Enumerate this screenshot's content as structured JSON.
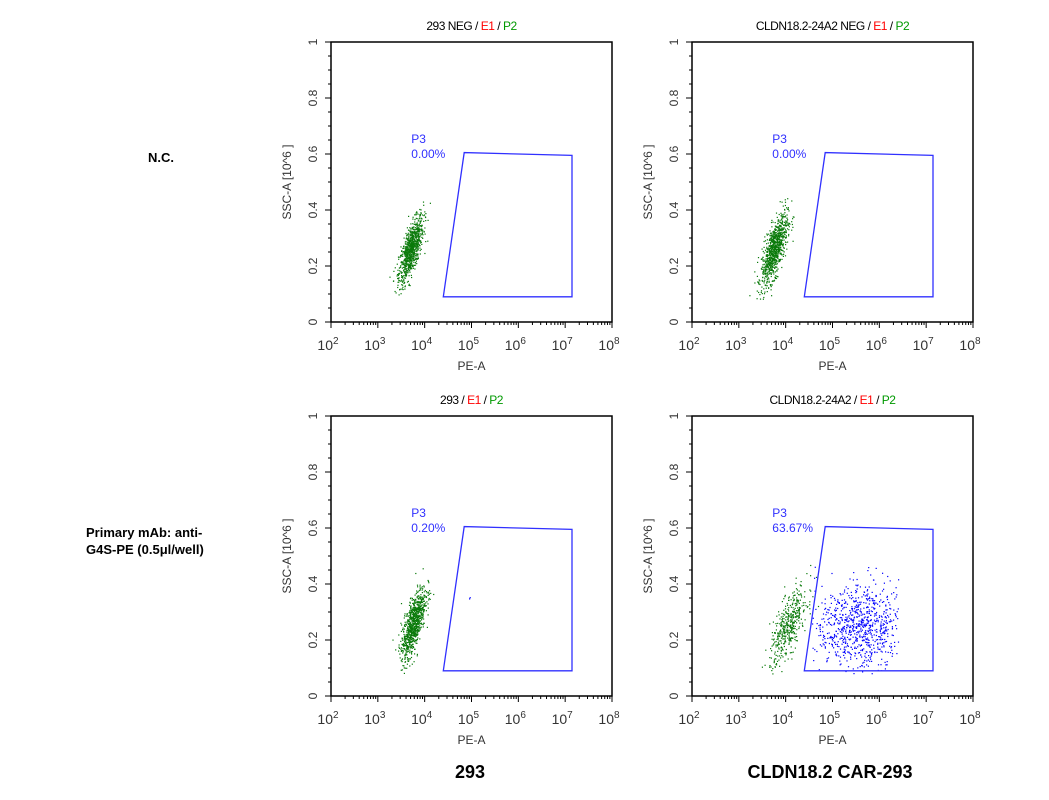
{
  "row_labels": [
    "N.C.",
    "Primary mAb: anti-\nG4S-PE (0.5μl/well)"
  ],
  "column_labels": [
    "293",
    "CLDN18.2 CAR-293"
  ],
  "colors": {
    "gate": "#3030ff",
    "negative_events": "#0a7a0a",
    "positive_events": "#0000ff",
    "title_e1": "#ff0000",
    "title_p2": "#009900"
  },
  "chart_data": [
    {
      "type": "scatter",
      "title": "293 NEG / E1 / P2",
      "title_parts": [
        "293 NEG",
        " / ",
        "E1",
        " / ",
        "P2"
      ],
      "xlabel": "PE-A",
      "ylabel": "SSC-A [10^6 ]",
      "xscale": "log",
      "xlim": [
        100,
        100000000
      ],
      "ylim": [
        0,
        1
      ],
      "xticks": [
        "10^2",
        "10^3",
        "10^4",
        "10^5",
        "10^6",
        "10^7",
        "10^8"
      ],
      "yticks": [
        "0",
        "0.2",
        "0.4",
        "0.6",
        "0.8",
        "1"
      ],
      "gate": {
        "name": "P3",
        "percent": "0.00%",
        "vertices": [
          [
            25000,
            0.09
          ],
          [
            70000,
            0.605
          ],
          [
            14000000,
            0.595
          ],
          [
            14000000,
            0.09
          ]
        ]
      },
      "populations": [
        {
          "color": "green",
          "center_log10_x": 3.7,
          "center_y": 0.26,
          "sd_log10_x": 0.13,
          "sd_y": 0.06,
          "count": 900
        }
      ]
    },
    {
      "type": "scatter",
      "title": "CLDN18.2-24A2 NEG / E1 / P2",
      "title_parts": [
        "CLDN18.2-24A2 NEG",
        " / ",
        "E1",
        " / ",
        "P2"
      ],
      "xlabel": "PE-A",
      "ylabel": "SSC-A [10^6 ]",
      "xscale": "log",
      "xlim": [
        100,
        100000000
      ],
      "ylim": [
        0,
        1
      ],
      "xticks": [
        "10^2",
        "10^3",
        "10^4",
        "10^5",
        "10^6",
        "10^7",
        "10^8"
      ],
      "yticks": [
        "0",
        "0.2",
        "0.4",
        "0.6",
        "0.8",
        "1"
      ],
      "gate": {
        "name": "P3",
        "percent": "0.00%",
        "vertices": [
          [
            25000,
            0.09
          ],
          [
            70000,
            0.605
          ],
          [
            14000000,
            0.595
          ],
          [
            14000000,
            0.09
          ]
        ]
      },
      "populations": [
        {
          "color": "green",
          "center_log10_x": 3.75,
          "center_y": 0.26,
          "sd_log10_x": 0.14,
          "sd_y": 0.065,
          "count": 900
        }
      ]
    },
    {
      "type": "scatter",
      "title": "293 / E1 / P2",
      "title_parts": [
        "293",
        " / ",
        "E1",
        " / ",
        "P2"
      ],
      "xlabel": "PE-A",
      "ylabel": "SSC-A [10^6 ]",
      "xscale": "log",
      "xlim": [
        100,
        100000000
      ],
      "ylim": [
        0,
        1
      ],
      "xticks": [
        "10^2",
        "10^3",
        "10^4",
        "10^5",
        "10^6",
        "10^7",
        "10^8"
      ],
      "yticks": [
        "0",
        "0.2",
        "0.4",
        "0.6",
        "0.8",
        "1"
      ],
      "gate": {
        "name": "P3",
        "percent": "0.20%",
        "vertices": [
          [
            25000,
            0.09
          ],
          [
            70000,
            0.605
          ],
          [
            14000000,
            0.595
          ],
          [
            14000000,
            0.09
          ]
        ]
      },
      "populations": [
        {
          "color": "green",
          "center_log10_x": 3.75,
          "center_y": 0.26,
          "sd_log10_x": 0.13,
          "sd_y": 0.065,
          "count": 900
        },
        {
          "color": "blue",
          "center_log10_x": 4.95,
          "center_y": 0.35,
          "sd_log10_x": 0.02,
          "sd_y": 0.005,
          "count": 2
        }
      ]
    },
    {
      "type": "scatter",
      "title": "CLDN18.2-24A2 / E1 / P2",
      "title_parts": [
        "CLDN18.2-24A2",
        " / ",
        "E1",
        " / ",
        "P2"
      ],
      "xlabel": "PE-A",
      "ylabel": "SSC-A [10^6 ]",
      "xscale": "log",
      "xlim": [
        100,
        100000000
      ],
      "ylim": [
        0,
        1
      ],
      "xticks": [
        "10^2",
        "10^3",
        "10^4",
        "10^5",
        "10^6",
        "10^7",
        "10^8"
      ],
      "yticks": [
        "0",
        "0.2",
        "0.4",
        "0.6",
        "0.8",
        "1"
      ],
      "gate": {
        "name": "P3",
        "percent": "63.67%",
        "vertices": [
          [
            25000,
            0.09
          ],
          [
            70000,
            0.605
          ],
          [
            14000000,
            0.595
          ],
          [
            14000000,
            0.09
          ]
        ]
      },
      "populations": [
        {
          "color": "green",
          "center_log10_x": 4.05,
          "center_y": 0.25,
          "sd_log10_x": 0.2,
          "sd_y": 0.07,
          "count": 450
        },
        {
          "color": "blue",
          "center_log10_x": 5.55,
          "center_y": 0.25,
          "sd_log10_x": 0.45,
          "sd_y": 0.075,
          "count": 800
        }
      ]
    }
  ]
}
